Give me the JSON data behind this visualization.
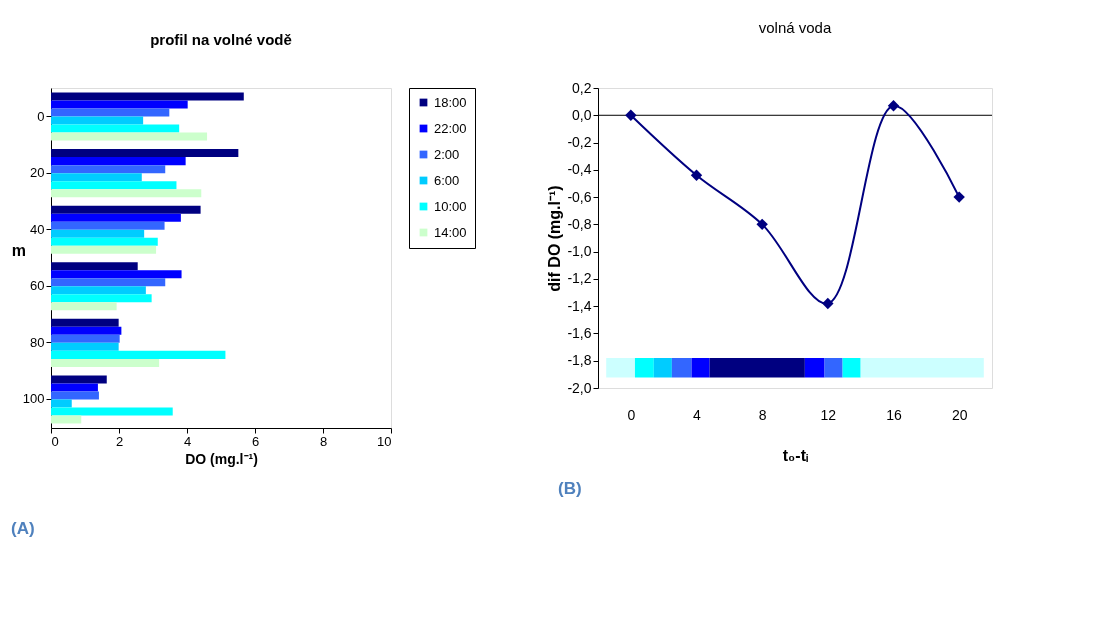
{
  "chart_data": [
    {
      "type": "bar",
      "orientation": "horizontal",
      "title": "profil na volné vodě",
      "xlabel": "DO (mg.l⁻¹)",
      "ylabel": "m",
      "categories": [
        "0",
        "20",
        "40",
        "60",
        "80",
        "100"
      ],
      "series": [
        {
          "name": "18:00",
          "color": "#000080",
          "values": [
            5.67,
            5.51,
            4.4,
            2.55,
            1.99,
            1.64
          ]
        },
        {
          "name": "22:00",
          "color": "#0000ff",
          "values": [
            4.02,
            3.96,
            3.82,
            3.84,
            2.07,
            1.38
          ]
        },
        {
          "name": "2:00",
          "color": "#3366ff",
          "values": [
            3.48,
            3.36,
            3.34,
            3.36,
            2.02,
            1.41
          ]
        },
        {
          "name": "6:00",
          "color": "#00ccff",
          "values": [
            2.71,
            2.67,
            2.74,
            2.79,
            1.99,
            0.61
          ]
        },
        {
          "name": "10:00",
          "color": "#00ffff",
          "values": [
            3.77,
            3.69,
            3.14,
            2.96,
            5.13,
            3.58
          ]
        },
        {
          "name": "14:00",
          "color": "#ccffcc",
          "values": [
            4.59,
            4.42,
            3.09,
            1.93,
            3.18,
            0.89
          ]
        }
      ],
      "xlim": [
        0,
        10
      ],
      "xticks": [
        0,
        2,
        4,
        6,
        8,
        10
      ],
      "grid": false,
      "legend": "right",
      "annotations": [
        "(A)"
      ]
    },
    {
      "type": "line",
      "title": "volná voda",
      "xlabel": "t₀-tᵢ",
      "ylabel": "dif DO (mg.l⁻¹)",
      "x": [
        0,
        4,
        8,
        12,
        16,
        20
      ],
      "series": [
        {
          "color": "#000080",
          "values": [
            0,
            -0.44,
            -0.8,
            -1.38,
            0.07,
            -0.6
          ]
        }
      ],
      "marker": "diamond",
      "line_style": "solid",
      "xlim": [
        -2,
        22
      ],
      "xticks": [
        0,
        4,
        8,
        12,
        16,
        20
      ],
      "ylim": [
        -2.0,
        0.2
      ],
      "yticks": [
        {
          "value": 0.2,
          "label": "0,2"
        },
        {
          "value": 0.0,
          "label": "0,0"
        },
        {
          "value": -0.2,
          "label": "-0,2"
        },
        {
          "value": -0.4,
          "label": "-0,4"
        },
        {
          "value": -0.6,
          "label": "-0,6"
        },
        {
          "value": -0.8,
          "label": "-0,8"
        },
        {
          "value": -1.0,
          "label": "-1,0"
        },
        {
          "value": -1.2,
          "label": "-1,2"
        },
        {
          "value": -1.4,
          "label": "-1,4"
        },
        {
          "value": -1.6,
          "label": "-1,6"
        },
        {
          "value": -1.8,
          "label": "-1,8"
        },
        {
          "value": -2.0,
          "label": "-2,0"
        }
      ],
      "grid": false,
      "ref_lines": [
        {
          "axis": "y",
          "value": 0,
          "color": "#000000"
        }
      ],
      "bands": [
        {
          "axis": "x",
          "from": -1.5,
          "to": 0.25,
          "color": "#ccffff"
        },
        {
          "axis": "x",
          "from": 0.25,
          "to": 1.4,
          "color": "#00ffff"
        },
        {
          "axis": "x",
          "from": 1.4,
          "to": 2.5,
          "color": "#00ccff"
        },
        {
          "axis": "x",
          "from": 2.5,
          "to": 3.7,
          "color": "#3366ff"
        },
        {
          "axis": "x",
          "from": 3.7,
          "to": 4.8,
          "color": "#0000ff"
        },
        {
          "axis": "x",
          "from": 4.8,
          "to": 10.6,
          "color": "#000080"
        },
        {
          "axis": "x",
          "from": 10.6,
          "to": 11.8,
          "color": "#0000ff"
        },
        {
          "axis": "x",
          "from": 11.8,
          "to": 12.9,
          "color": "#3366ff"
        },
        {
          "axis": "x",
          "from": 12.9,
          "to": 14,
          "color": "#00ffff"
        },
        {
          "axis": "x",
          "from": 14,
          "to": 21.5,
          "color": "#ccffff"
        }
      ],
      "annotations": [
        "(B)"
      ]
    }
  ]
}
